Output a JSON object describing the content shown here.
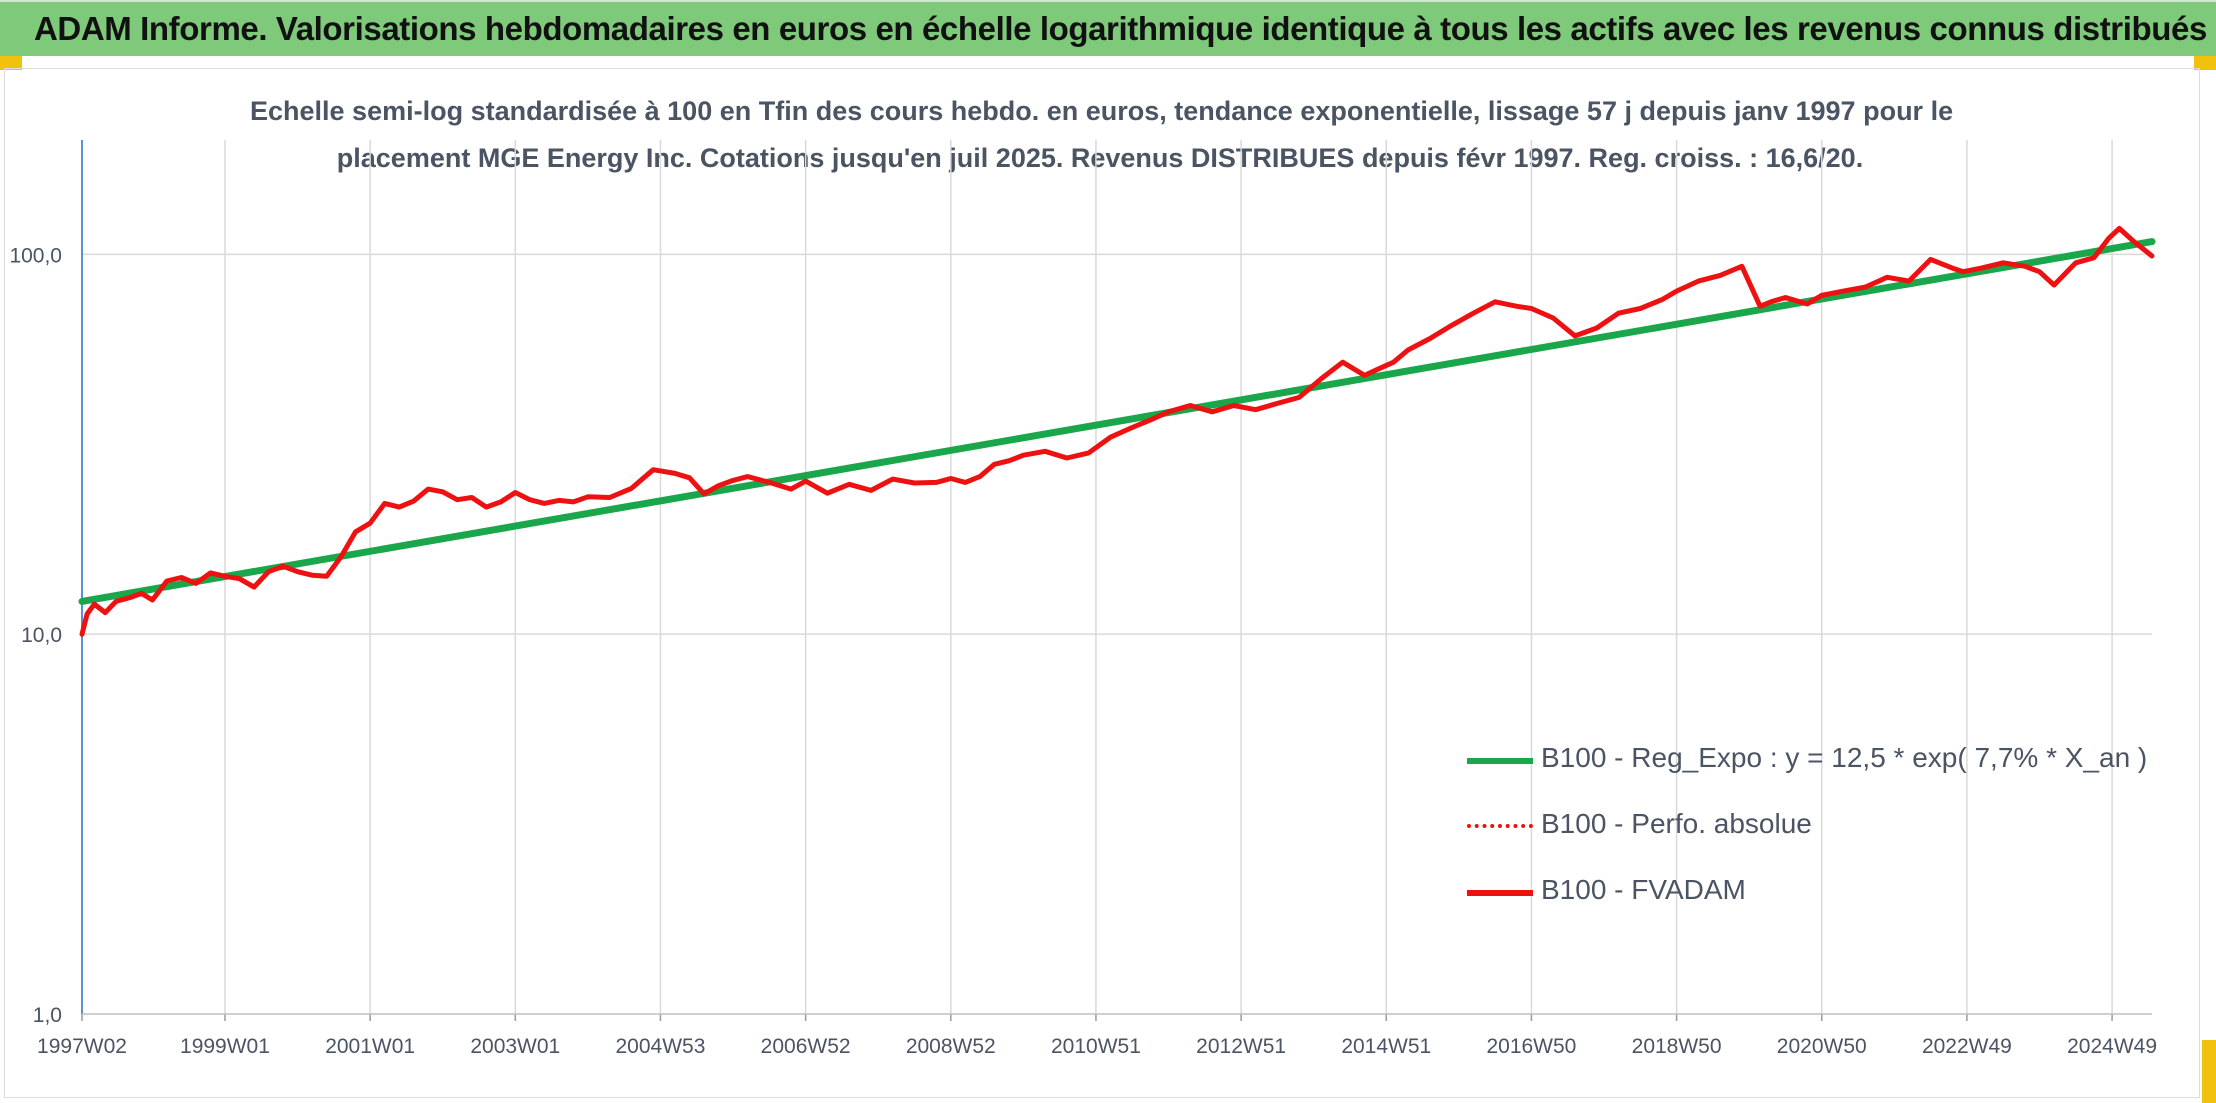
{
  "header": {
    "title": "ADAM Informe. Valorisations hebdomadaires en euros en échelle logarithmique identique à tous les actifs avec les revenus connus distribués"
  },
  "colors": {
    "header_bg": "#7fc97a",
    "corner_accent": "#f2c10e",
    "trend": "#1aa64a",
    "series": "#ee1111",
    "text": "#4a5463",
    "grid": "#d9d9d9"
  },
  "chart_data": {
    "type": "line",
    "title_line1": "Echelle semi-log standardisée à 100 en Tfin des cours hebdo. en euros, tendance exponentielle, lissage 57 j depuis janv 1997 pour le",
    "title_line2": "placement MGE Energy Inc. Cotations jusqu'en juil 2025. Revenus DISTRIBUES depuis févr 1997. Reg. croiss. : 16,6/20.",
    "y_scale": "log",
    "ylim": [
      1,
      200
    ],
    "xlim": [
      1997.03,
      2025.55
    ],
    "y_ticks": [
      {
        "value": 1,
        "label": "1,0"
      },
      {
        "value": 10,
        "label": "10,0"
      },
      {
        "value": 100,
        "label": "100,0"
      }
    ],
    "x_ticks": [
      {
        "value": 1997.03,
        "label": "1997W02"
      },
      {
        "value": 1999.0,
        "label": "1999W01"
      },
      {
        "value": 2001.0,
        "label": "2001W01"
      },
      {
        "value": 2003.0,
        "label": "2003W01"
      },
      {
        "value": 2005.0,
        "label": "2004W53"
      },
      {
        "value": 2007.0,
        "label": "2006W52"
      },
      {
        "value": 2009.0,
        "label": "2008W52"
      },
      {
        "value": 2011.0,
        "label": "2010W51"
      },
      {
        "value": 2013.0,
        "label": "2012W51"
      },
      {
        "value": 2015.0,
        "label": "2014W51"
      },
      {
        "value": 2017.0,
        "label": "2016W50"
      },
      {
        "value": 2019.0,
        "label": "2018W50"
      },
      {
        "value": 2021.0,
        "label": "2020W50"
      },
      {
        "value": 2023.0,
        "label": "2022W49"
      },
      {
        "value": 2025.0,
        "label": "2024W49"
      }
    ],
    "grid": true,
    "legend_position": "bottom-right",
    "legend": [
      {
        "label": "B100 - Reg_Expo : y = 12,5 * exp( 7,7% *  X_an )",
        "color": "#1aa64a",
        "style": "solid-thick"
      },
      {
        "label": "B100 - Perfo. absolue",
        "color": "#ee1111",
        "style": "dotted"
      },
      {
        "label": "B100 - FVADAM",
        "color": "#ee1111",
        "style": "solid"
      }
    ],
    "series": [
      {
        "name": "B100 - Reg_Expo : y = 12,5 * exp( 7,7% *  X_an )",
        "type": "trend",
        "x": [
          1997.03,
          2025.55
        ],
        "y": [
          12.2,
          108
        ]
      },
      {
        "name": "B100 - FVADAM",
        "type": "line",
        "x": [
          1997.03,
          1997.1,
          1997.2,
          1997.35,
          1997.5,
          1997.7,
          1997.85,
          1998.0,
          1998.2,
          1998.4,
          1998.6,
          1998.8,
          1999.0,
          1999.2,
          1999.4,
          1999.6,
          1999.8,
          2000.0,
          2000.2,
          2000.4,
          2000.6,
          2000.8,
          2001.0,
          2001.2,
          2001.4,
          2001.6,
          2001.8,
          2002.0,
          2002.2,
          2002.4,
          2002.6,
          2002.8,
          2003.0,
          2003.2,
          2003.4,
          2003.6,
          2003.8,
          2004.0,
          2004.3,
          2004.6,
          2004.9,
          2005.2,
          2005.4,
          2005.6,
          2005.8,
          2006.0,
          2006.2,
          2006.5,
          2006.8,
          2007.0,
          2007.3,
          2007.6,
          2007.9,
          2008.2,
          2008.5,
          2008.8,
          2009.0,
          2009.2,
          2009.4,
          2009.6,
          2009.8,
          2010.0,
          2010.3,
          2010.6,
          2010.9,
          2011.2,
          2011.5,
          2011.8,
          2012.0,
          2012.3,
          2012.6,
          2012.9,
          2013.2,
          2013.5,
          2013.8,
          2014.1,
          2014.4,
          2014.7,
          2014.9,
          2015.1,
          2015.3,
          2015.6,
          2015.9,
          2016.2,
          2016.5,
          2016.8,
          2017.0,
          2017.3,
          2017.6,
          2017.9,
          2018.2,
          2018.5,
          2018.8,
          2019.0,
          2019.3,
          2019.6,
          2019.9,
          2020.15,
          2020.3,
          2020.5,
          2020.8,
          2021.0,
          2021.3,
          2021.6,
          2021.9,
          2022.2,
          2022.5,
          2022.8,
          2022.95,
          2023.2,
          2023.5,
          2023.8,
          2024.0,
          2024.2,
          2024.5,
          2024.75,
          2024.95,
          2025.1,
          2025.3,
          2025.55
        ],
        "y": [
          10.0,
          11.3,
          12.0,
          11.4,
          12.2,
          12.5,
          12.8,
          12.3,
          13.8,
          14.1,
          13.6,
          14.5,
          14.2,
          14.0,
          13.3,
          14.6,
          15.1,
          14.6,
          14.3,
          14.2,
          16.0,
          18.6,
          19.6,
          22.1,
          21.6,
          22.4,
          24.1,
          23.7,
          22.6,
          22.9,
          21.6,
          22.3,
          23.6,
          22.6,
          22.1,
          22.5,
          22.3,
          23.0,
          22.9,
          24.2,
          27.1,
          26.5,
          25.8,
          23.4,
          24.6,
          25.4,
          26.0,
          25.1,
          24.1,
          25.3,
          23.5,
          24.8,
          23.9,
          25.6,
          25.0,
          25.1,
          25.7,
          25.1,
          26.0,
          28.0,
          28.6,
          29.6,
          30.3,
          29.1,
          30.0,
          33.0,
          35.0,
          37.0,
          38.5,
          40.0,
          38.5,
          40.0,
          39.0,
          40.5,
          42.0,
          47.0,
          52.0,
          48.0,
          50.0,
          52.0,
          56.0,
          60.0,
          65.0,
          70.0,
          75.0,
          73.0,
          72.0,
          68.0,
          61.0,
          64.0,
          70.0,
          72.0,
          76.0,
          80.0,
          85.0,
          88.0,
          93.0,
          73.0,
          75.0,
          77.0,
          74.0,
          78.0,
          80.0,
          82.0,
          87.0,
          85.0,
          97.0,
          92.0,
          90.0,
          92.0,
          95.0,
          93.0,
          90.0,
          83.0,
          95.0,
          98.0,
          110.0,
          117.0,
          108.0,
          99.0
        ]
      }
    ]
  }
}
